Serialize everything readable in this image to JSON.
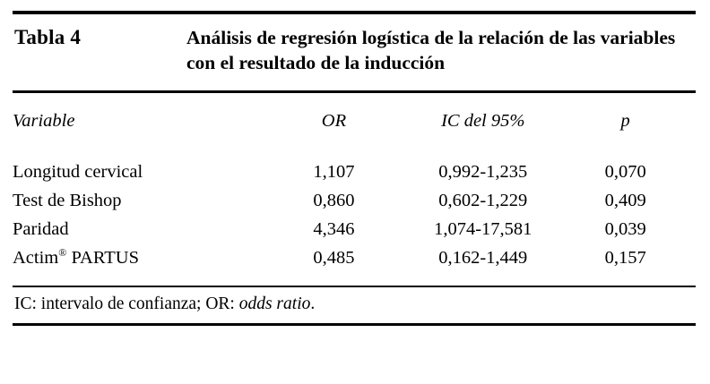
{
  "table": {
    "label": "Tabla 4",
    "title": "Análisis de regresión logística de la relación de las variables con el resultado de la inducción",
    "headers": [
      "Variable",
      "OR",
      "IC del 95%",
      "p"
    ],
    "rows": [
      {
        "variable": "Longitud cervical",
        "or": "1,107",
        "ic95": "0,992-1,235",
        "p": "0,070"
      },
      {
        "variable": "Test de Bishop",
        "or": "0,860",
        "ic95": "0,602-1,229",
        "p": "0,409"
      },
      {
        "variable": "Paridad",
        "or": "4,346",
        "ic95": "1,074-17,581",
        "p": "0,039"
      },
      {
        "variable_base": "Actim",
        "variable_sup": "®",
        "variable_rest": " PARTUS",
        "or": "0,485",
        "ic95": "0,162-1,449",
        "p": "0,157"
      }
    ],
    "footnote": {
      "prefix": "IC: intervalo de confianza; OR: ",
      "italic": "odds ratio",
      "suffix": "."
    }
  }
}
